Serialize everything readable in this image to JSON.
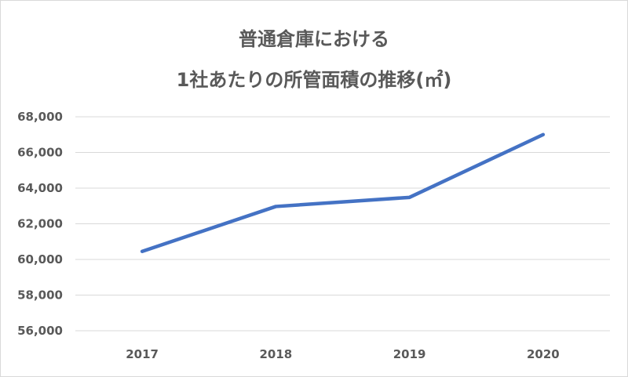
{
  "chart_data": {
    "type": "line",
    "title_line1": "普通倉庫における",
    "title_line2": "1社あたりの所管面積の推移(㎡)",
    "categories": [
      "2017",
      "2018",
      "2019",
      "2020"
    ],
    "values": [
      60450,
      62970,
      63480,
      67000
    ],
    "ylim": [
      56000,
      68000
    ],
    "yticks": [
      "56,000",
      "58,000",
      "60,000",
      "62,000",
      "64,000",
      "66,000",
      "68,000"
    ],
    "grid": true,
    "legend": "none",
    "line_color": "#4472c4"
  }
}
